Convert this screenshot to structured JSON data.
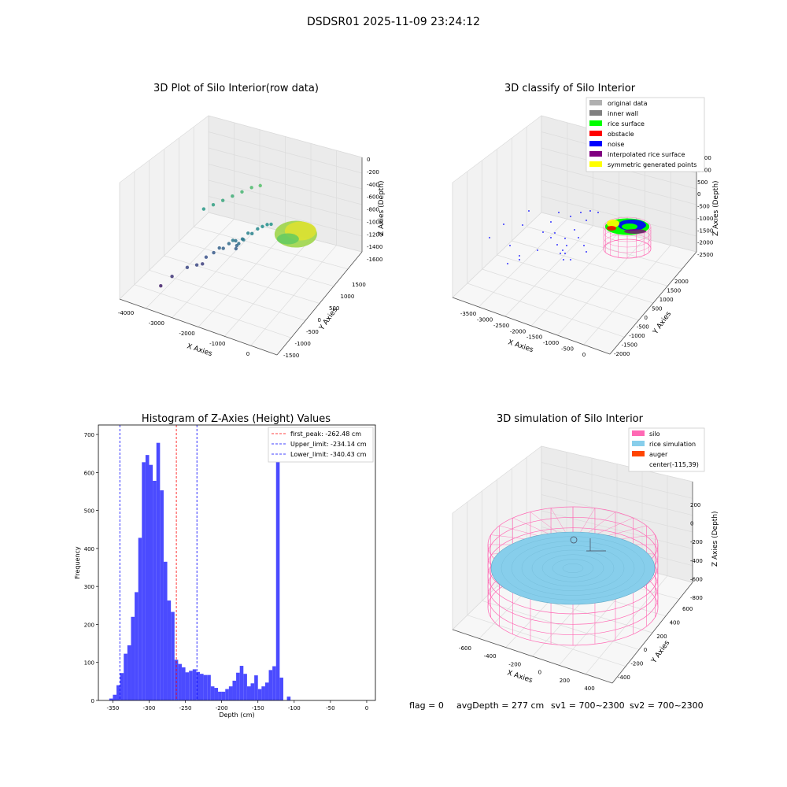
{
  "figure": {
    "suptitle": "DSDSR01 2025-11-09 23:24:12",
    "footer": {
      "flag": "flag = 0",
      "avgdepth": "avgDepth = 277 cm",
      "sv1": "sv1 = 700~2300",
      "sv2": "sv2 = 700~2300"
    }
  },
  "colors": {
    "hist_bar": "#4b4bff",
    "peak_line": "#ff0000",
    "limit_line": "#0000ff",
    "silo": "#ff69b4",
    "rice": "#87ceeb",
    "auger": "#ff4500",
    "grey_original": "#b0b0b0",
    "inner_wall": "#808080",
    "rice_surface": "#00ff00",
    "obstacle": "#ff0000",
    "noise": "#0000ff",
    "interp": "#800080",
    "symmetric": "#ffff00"
  },
  "chart_data": [
    {
      "type": "scatter",
      "title": "3D Plot of Silo Interior(row data)",
      "xlabel": "X Axies",
      "ylabel": "Y Axies",
      "zlabel": "Z Axies (Depth)",
      "x_ticks": [
        "-4000",
        "-3000",
        "-2000",
        "-1000",
        "0"
      ],
      "y_ticks": [
        "-1500",
        "-1000",
        "-500",
        "0",
        "500",
        "1000",
        "1500"
      ],
      "z_ticks": [
        "-1600",
        "-1400",
        "-1200",
        "-1000",
        "-800",
        "-600",
        "-400",
        "-200",
        "0"
      ],
      "xlim": [
        -4000,
        0
      ],
      "ylim": [
        -1500,
        1500
      ],
      "zlim": [
        -1600,
        0
      ],
      "colormap": "viridis",
      "points": [
        {
          "x": -3300,
          "y": -700,
          "z": -1450
        },
        {
          "x": -3100,
          "y": -500,
          "z": -1350
        },
        {
          "x": -2800,
          "y": -300,
          "z": -1250
        },
        {
          "x": -2600,
          "y": -200,
          "z": -1250
        },
        {
          "x": -2500,
          "y": -100,
          "z": -1300
        },
        {
          "x": -2450,
          "y": 0,
          "z": -1200
        },
        {
          "x": -2300,
          "y": 100,
          "z": -1150
        },
        {
          "x": -2200,
          "y": 200,
          "z": -1100
        },
        {
          "x": -2100,
          "y": 200,
          "z": -1100
        },
        {
          "x": -2000,
          "y": 300,
          "z": -1050
        },
        {
          "x": -1900,
          "y": 300,
          "z": -950
        },
        {
          "x": -1850,
          "y": 350,
          "z": -1000
        },
        {
          "x": -1800,
          "y": 300,
          "z": -1080
        },
        {
          "x": -1800,
          "y": 250,
          "z": -1120
        },
        {
          "x": -1750,
          "y": 300,
          "z": -1020
        },
        {
          "x": -1700,
          "y": 400,
          "z": -980
        },
        {
          "x": -1650,
          "y": 350,
          "z": -950
        },
        {
          "x": -1600,
          "y": 500,
          "z": -900
        },
        {
          "x": -1500,
          "y": 500,
          "z": -900
        },
        {
          "x": -1400,
          "y": 600,
          "z": -850
        },
        {
          "x": -1300,
          "y": 650,
          "z": -820
        },
        {
          "x": -1200,
          "y": 700,
          "z": -800
        },
        {
          "x": -1100,
          "y": 700,
          "z": -780
        },
        {
          "x": -2900,
          "y": 900,
          "z": -750
        },
        {
          "x": -2700,
          "y": 1000,
          "z": -700
        },
        {
          "x": -2500,
          "y": 1100,
          "z": -650
        },
        {
          "x": -2300,
          "y": 1200,
          "z": -600
        },
        {
          "x": -2100,
          "y": 1300,
          "z": -550
        },
        {
          "x": -1900,
          "y": 1400,
          "z": -500
        },
        {
          "x": -1700,
          "y": 1450,
          "z": -470
        }
      ],
      "cluster": {
        "center_x": -300,
        "center_y": 300,
        "center_z": -600,
        "rx": 400,
        "ry": 600
      }
    },
    {
      "type": "scatter",
      "title": "3D classify of Silo Interior",
      "xlabel": "X Axies",
      "ylabel": "Y Axies",
      "zlabel": "Z Axies (Depth)",
      "x_ticks": [
        "-3500",
        "-3000",
        "-2500",
        "-2000",
        "-1500",
        "-1000",
        "-500",
        "0"
      ],
      "y_ticks": [
        "-2000",
        "-1500",
        "-1000",
        "-500",
        "0",
        "500",
        "1000",
        "1500",
        "2000"
      ],
      "z_ticks": [
        "-2500",
        "-2000",
        "-1500",
        "-1000",
        "-500",
        "0",
        "500",
        "1000",
        "1500"
      ],
      "xlim": [
        -3500,
        0
      ],
      "ylim": [
        -2000,
        2000
      ],
      "zlim": [
        -2500,
        1500
      ],
      "legend": [
        {
          "label": "original data",
          "color": "#b0b0b0"
        },
        {
          "label": "inner wall",
          "color": "#808080"
        },
        {
          "label": "rice surface",
          "color": "#00ff00"
        },
        {
          "label": "obstacle",
          "color": "#ff0000"
        },
        {
          "label": "noise",
          "color": "#0000ff"
        },
        {
          "label": "interpolated rice surface",
          "color": "#800080"
        },
        {
          "label": "symmetric generated points",
          "color": "#ffff00"
        }
      ]
    },
    {
      "type": "bar",
      "title": "Histogram of Z-Axies (Height) Values",
      "xlabel": "Depth (cm)",
      "ylabel": "Frequency",
      "xlim": [
        -370,
        12
      ],
      "ylim": [
        0,
        725
      ],
      "x_ticks": [
        -350,
        -300,
        -250,
        -200,
        -150,
        -100,
        -50,
        0
      ],
      "y_ticks": [
        0,
        100,
        200,
        300,
        400,
        500,
        600,
        700
      ],
      "bin_width": 5,
      "bin_start": -355,
      "values": [
        5,
        15,
        40,
        72,
        123,
        145,
        220,
        285,
        428,
        627,
        646,
        620,
        578,
        678,
        553,
        365,
        263,
        233,
        107,
        96,
        87,
        74,
        78,
        82,
        75,
        70,
        67,
        67,
        37,
        33,
        23,
        23,
        30,
        37,
        52,
        73,
        91,
        70,
        37,
        45,
        66,
        30,
        37,
        47,
        80,
        90,
        695,
        60,
        0,
        10
      ],
      "lines": [
        {
          "label": "first_peak: -262.48 cm",
          "x": -262.48,
          "color": "#ff0000"
        },
        {
          "label": "Upper_limit: -234.14 cm",
          "x": -234.14,
          "color": "#0000ff"
        },
        {
          "label": "Lower_limit: -340.43 cm",
          "x": -340.43,
          "color": "#0000ff"
        }
      ]
    },
    {
      "type": "scatter",
      "title": "3D simulation of Silo Interior",
      "xlabel": "X Axies",
      "ylabel": "Y Axies",
      "zlabel": "Z Axies (Depth)",
      "x_ticks": [
        "-600",
        "-400",
        "-200",
        "0",
        "200",
        "400"
      ],
      "y_ticks": [
        "-400",
        "-200",
        "0",
        "200",
        "400",
        "600"
      ],
      "z_ticks": [
        "-800",
        "-600",
        "-400",
        "-200",
        "0",
        "200"
      ],
      "xlim": [
        -700,
        400
      ],
      "ylim": [
        -500,
        650
      ],
      "zlim": [
        -850,
        300
      ],
      "legend": [
        {
          "label": "silo",
          "color": "#ff69b4"
        },
        {
          "label": "rice simulation",
          "color": "#87ceeb"
        },
        {
          "label": "auger",
          "color": "#ff4500"
        },
        {
          "label": "center(-115,39)",
          "color": ""
        }
      ]
    }
  ]
}
